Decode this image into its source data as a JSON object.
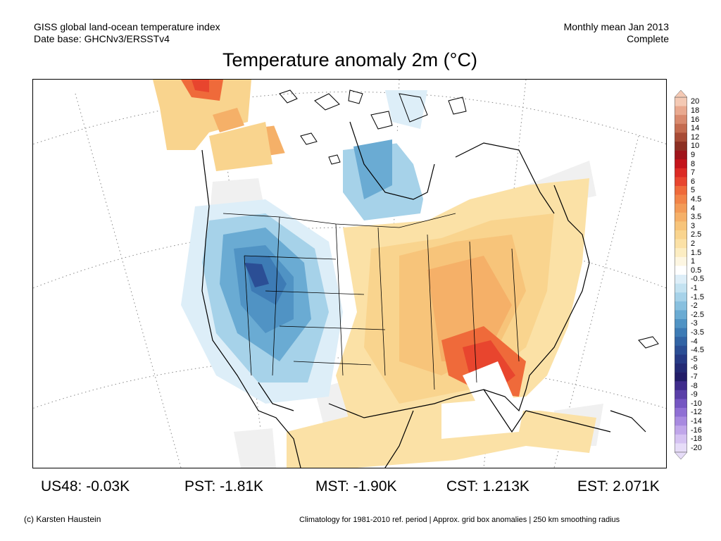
{
  "header": {
    "line1": "GISS global land-ocean temperature index",
    "line2": "Date base: GHCNv3/ERSSTv4",
    "right1": "Monthly mean Jan 2013",
    "right2": "Complete"
  },
  "title": "Temperature anomaly 2m (°C)",
  "colorbar": {
    "labels": [
      "20",
      "18",
      "16",
      "14",
      "12",
      "10",
      "9",
      "8",
      "7",
      "6",
      "5",
      "4.5",
      "4",
      "3.5",
      "3",
      "2.5",
      "2",
      "1.5",
      "1",
      "0.5",
      "-0.5",
      "-1",
      "-1.5",
      "-2",
      "-2.5",
      "-3",
      "-3.5",
      "-4",
      "-4.5",
      "-5",
      "-6",
      "-7",
      "-8",
      "-9",
      "-10",
      "-12",
      "-14",
      "-16",
      "-18",
      "-20"
    ],
    "colors": [
      "#f4c9b4",
      "#e9a98f",
      "#d98a6e",
      "#c46b4f",
      "#a84b35",
      "#8c2f22",
      "#a0141b",
      "#c4141b",
      "#dc2a24",
      "#e8452e",
      "#ef6a3a",
      "#f28448",
      "#f39b57",
      "#f5b068",
      "#f7c47a",
      "#f9d48e",
      "#fbe1a6",
      "#fcedc2",
      "#fdf6e2",
      "#ffffff",
      "#ddeef8",
      "#c3e2f1",
      "#a6d2e9",
      "#88c0df",
      "#6aabd3",
      "#5093c4",
      "#3d7bb5",
      "#3264a5",
      "#2b4e95",
      "#263a85",
      "#232a75",
      "#221d68",
      "#3f2c8c",
      "#5a3fa8",
      "#7556c2",
      "#8f6fd4",
      "#a88ae0",
      "#c0a6ea",
      "#d5c2f2",
      "#e6dcf8"
    ]
  },
  "stats": {
    "us48": "US48: -0.03K",
    "pst": "PST: -1.81K",
    "mst": "MST: -1.90K",
    "cst": "CST: 1.213K",
    "est": "EST: 2.071K"
  },
  "footer": {
    "left": "(c) Karsten Haustein",
    "right": "Climatology for 1981-2010 ref. period | Approx. grid box anomalies | 250 km smoothing radius"
  }
}
